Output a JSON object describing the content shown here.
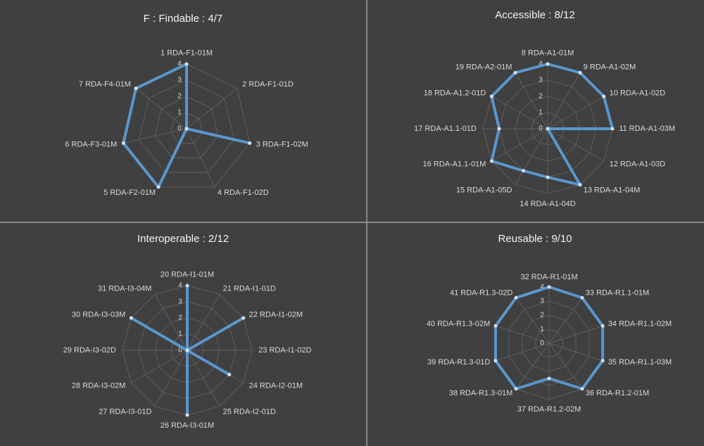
{
  "chart_data": [
    {
      "type": "radar",
      "title": "F : Findable : 4/7",
      "categories": [
        "1 RDA-F1-01M",
        "2 RDA-F1-01D",
        "3 RDA-F1-02M",
        "4 RDA-F1-02D",
        "5 RDA-F2-01M",
        "6 RDA-F3-01M",
        "7 RDA-F4-01M"
      ],
      "values": [
        4,
        0,
        4,
        0,
        4,
        4,
        4
      ],
      "color": "#5b9bd5",
      "ylim": [
        0,
        4
      ],
      "yticks": [
        0,
        1,
        2,
        3,
        4
      ],
      "grid": true
    },
    {
      "type": "radar",
      "title": "Accessible : 8/12",
      "categories": [
        "8 RDA-A1-01M",
        "9 RDA-A1-02M",
        "10 RDA-A1-02D",
        "11 RDA-A1-03M",
        "12 RDA-A1-03D",
        "13 RDA-A1-04M",
        "14 RDA-A1-04D",
        "15 RDA-A1-05D",
        "16 RDA-A1.1-01M",
        "17 RDA-A1.1-01D",
        "18 RDA-A1.2-01D",
        "19 RDA-A2-01M"
      ],
      "values": [
        4,
        4,
        4,
        4,
        0,
        4,
        3,
        3,
        4,
        3,
        4,
        4
      ],
      "color": "#5b9bd5",
      "ylim": [
        0,
        4
      ],
      "yticks": [
        0,
        1,
        2,
        3,
        4
      ],
      "grid": true
    },
    {
      "type": "radar",
      "title": "Interoperable : 2/12",
      "categories": [
        "20 RDA-I1-01M",
        "21 RDA-I1-01D",
        "22 RDA-I1-02M",
        "23 RDA-I1-02D",
        "24 RDA-I2-01M",
        "25 RDA-I2-01D",
        "26 RDA-I3-01M",
        "27 RDA-I3-01D",
        "28 RDA-I3-02M",
        "29 RDA-I3-02D",
        "30 RDA-I3-03M",
        "31 RDA-I3-04M"
      ],
      "values": [
        4,
        0,
        4,
        0,
        3,
        0,
        4,
        0,
        0,
        0,
        4,
        0
      ],
      "color": "#5b9bd5",
      "ylim": [
        0,
        4
      ],
      "yticks": [
        0,
        1,
        2,
        3,
        4
      ],
      "grid": true
    },
    {
      "type": "radar",
      "title": "Reusable : 9/10",
      "categories": [
        "32 RDA-R1-01M",
        "33 RDA-R1.1-01M",
        "34 RDA-R1.1-02M",
        "35 RDA-R1.1-03M",
        "36 RDA-R1.2-01M",
        "37 RDA-R1.2-02M",
        "38 RDA-R1.3-01M",
        "39 RDA-R1.3-01D",
        "40 RDA-R1.3-02M",
        "41 RDA-R1.3-02D"
      ],
      "values": [
        4,
        4,
        4,
        4,
        4,
        2.5,
        4,
        4,
        4,
        4
      ],
      "color": "#5b9bd5",
      "ylim": [
        0,
        4
      ],
      "yticks": [
        0,
        1,
        2,
        3,
        4
      ],
      "grid": true
    }
  ]
}
